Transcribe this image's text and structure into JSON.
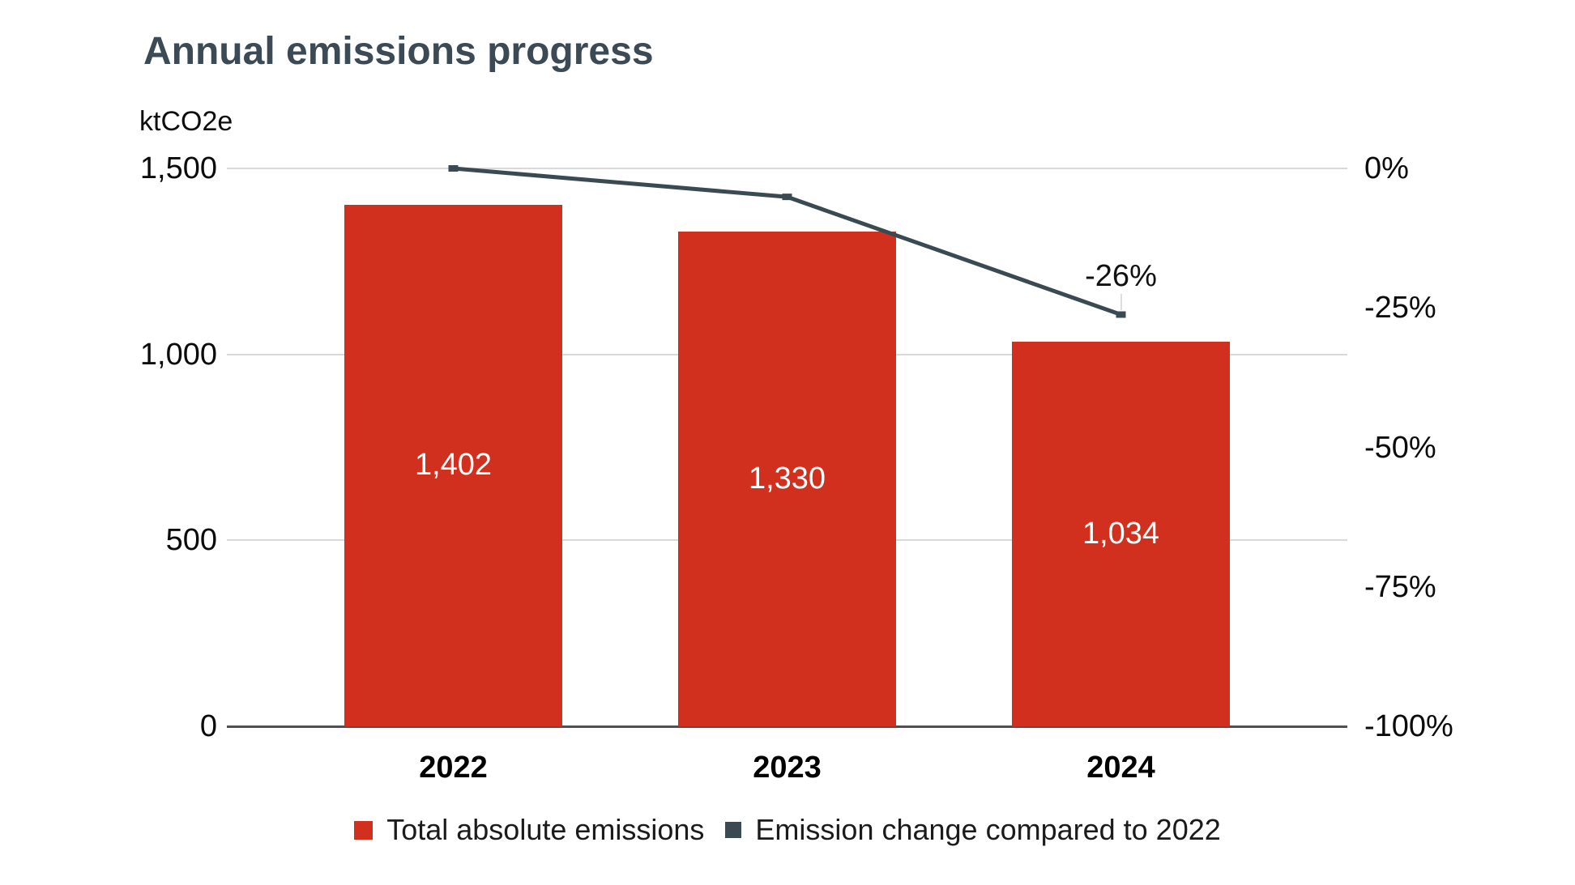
{
  "chart": {
    "title": "Annual emissions progress"
  },
  "chart_data": {
    "type": "bar+line",
    "title": "Annual emissions progress",
    "categories": [
      "2022",
      "2023",
      "2024"
    ],
    "series": [
      {
        "name": "Total absolute emissions",
        "type": "bar",
        "axis": "left",
        "values": [
          1402,
          1330,
          1034
        ],
        "value_labels": [
          "1,402",
          "1,330",
          "1,034"
        ],
        "color": "#d2301e"
      },
      {
        "name": "Emission change compared to 2022",
        "type": "line",
        "axis": "right",
        "values": [
          0,
          -5.1,
          -26.2
        ],
        "color": "#3a4a52"
      }
    ],
    "annotations": [
      {
        "text": "-26%",
        "series_index": 1,
        "point_index": 2
      }
    ],
    "left_axis": {
      "unit": "ktCO2e",
      "min": 0,
      "max": 1500,
      "tick_values": [
        1500,
        1000,
        500,
        0
      ],
      "tick_labels": [
        "1,500",
        "1,000",
        "500",
        "0"
      ]
    },
    "right_axis": {
      "min": -100,
      "max": 0,
      "tick_values": [
        0,
        -25,
        -50,
        -75,
        -100
      ],
      "tick_labels": [
        "0%",
        "-25%",
        "-50%",
        "-75%",
        "-100%"
      ]
    },
    "grid": "horizontal",
    "legend_position": "bottom",
    "colors": {
      "bar": "#d2301e",
      "line": "#3a4a52",
      "gridline": "#d9d9d9",
      "axis_line": "#505050",
      "title": "#3b4a54"
    }
  }
}
